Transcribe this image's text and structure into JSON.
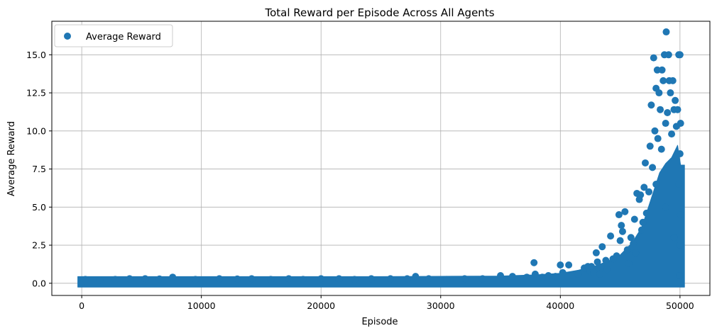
{
  "chart_data": {
    "type": "scatter",
    "title": "Total Reward per Episode Across All Agents",
    "xlabel": "Episode",
    "ylabel": "Average Reward",
    "xlim": [
      -2500,
      52500
    ],
    "ylim": [
      -0.8,
      17.2
    ],
    "x_ticks": [
      0,
      10000,
      20000,
      30000,
      40000,
      50000
    ],
    "x_tick_labels": [
      "0",
      "10000",
      "20000",
      "30000",
      "40000",
      "50000"
    ],
    "y_ticks": [
      0.0,
      2.5,
      5.0,
      7.5,
      10.0,
      12.5,
      15.0
    ],
    "y_tick_labels": [
      "0.0",
      "2.5",
      "5.0",
      "7.5",
      "10.0",
      "12.5",
      "15.0"
    ],
    "grid": true,
    "legend_position": "upper-left",
    "series": [
      {
        "name": "Average Reward",
        "color": "#1f77b4",
        "marker": "circle",
        "points": [
          [
            0,
            0.0
          ],
          [
            300,
            0.25
          ],
          [
            1500,
            0.2
          ],
          [
            2800,
            0.25
          ],
          [
            4000,
            0.3
          ],
          [
            5300,
            0.3
          ],
          [
            6500,
            0.28
          ],
          [
            7600,
            0.4
          ],
          [
            9500,
            0.25
          ],
          [
            11500,
            0.3
          ],
          [
            13000,
            0.28
          ],
          [
            14200,
            0.3
          ],
          [
            15800,
            0.25
          ],
          [
            17300,
            0.3
          ],
          [
            18500,
            0.25
          ],
          [
            20000,
            0.3
          ],
          [
            21500,
            0.3
          ],
          [
            22800,
            0.25
          ],
          [
            24200,
            0.3
          ],
          [
            25800,
            0.3
          ],
          [
            27200,
            0.3
          ],
          [
            27900,
            0.45
          ],
          [
            29000,
            0.3
          ],
          [
            30500,
            0.25
          ],
          [
            32000,
            0.3
          ],
          [
            33500,
            0.3
          ],
          [
            35000,
            0.5
          ],
          [
            36000,
            0.45
          ],
          [
            37200,
            0.4
          ],
          [
            37800,
            1.35
          ],
          [
            37900,
            0.6
          ],
          [
            38500,
            0.4
          ],
          [
            39000,
            0.5
          ],
          [
            39600,
            0.45
          ],
          [
            40000,
            1.2
          ],
          [
            40200,
            0.7
          ],
          [
            40700,
            1.2
          ],
          [
            41000,
            0.5
          ],
          [
            41500,
            0.6
          ],
          [
            42000,
            1.0
          ],
          [
            42300,
            1.1
          ],
          [
            42500,
            0.8
          ],
          [
            42600,
            1.1
          ],
          [
            42800,
            0.7
          ],
          [
            43000,
            2.0
          ],
          [
            43100,
            1.4
          ],
          [
            43300,
            0.6
          ],
          [
            43500,
            2.4
          ],
          [
            43800,
            1.5
          ],
          [
            43900,
            0.9
          ],
          [
            44200,
            3.1
          ],
          [
            44400,
            1.6
          ],
          [
            44700,
            1.8
          ],
          [
            44900,
            4.5
          ],
          [
            45000,
            2.8
          ],
          [
            45100,
            3.8
          ],
          [
            45200,
            3.4
          ],
          [
            45400,
            4.7
          ],
          [
            45600,
            2.2
          ],
          [
            45700,
            1.3
          ],
          [
            45900,
            3.0
          ],
          [
            46100,
            2.6
          ],
          [
            46200,
            4.2
          ],
          [
            46300,
            2.0
          ],
          [
            46400,
            5.9
          ],
          [
            46600,
            5.5
          ],
          [
            46700,
            5.8
          ],
          [
            46800,
            3.5
          ],
          [
            46900,
            4.0
          ],
          [
            47000,
            6.3
          ],
          [
            47100,
            7.9
          ],
          [
            47200,
            4.6
          ],
          [
            47400,
            6.0
          ],
          [
            47500,
            9.0
          ],
          [
            47600,
            11.7
          ],
          [
            47700,
            7.6
          ],
          [
            47800,
            14.8
          ],
          [
            47900,
            10.0
          ],
          [
            48000,
            12.8
          ],
          [
            48100,
            14.0
          ],
          [
            48150,
            9.5
          ],
          [
            48250,
            12.5
          ],
          [
            48350,
            11.4
          ],
          [
            48450,
            8.8
          ],
          [
            48500,
            14.0
          ],
          [
            48600,
            13.3
          ],
          [
            48700,
            15.0
          ],
          [
            48800,
            10.5
          ],
          [
            48850,
            16.5
          ],
          [
            48950,
            11.2
          ],
          [
            49050,
            15.0
          ],
          [
            49100,
            13.3
          ],
          [
            49200,
            12.5
          ],
          [
            49300,
            9.8
          ],
          [
            49400,
            13.3
          ],
          [
            49500,
            11.4
          ],
          [
            49600,
            12.0
          ],
          [
            49700,
            10.3
          ],
          [
            49800,
            11.4
          ],
          [
            49900,
            15.0
          ],
          [
            50000,
            15.0
          ],
          [
            50050,
            10.5
          ],
          [
            50000,
            8.5
          ],
          [
            49900,
            6.5
          ],
          [
            50050,
            4.5
          ],
          [
            50000,
            2.5
          ],
          [
            49950,
            0.5
          ],
          [
            48000,
            6.5
          ],
          [
            48800,
            5.0
          ],
          [
            49500,
            3.0
          ]
        ]
      }
    ],
    "dense_bands": [
      [
        0,
        0.0,
        0.18
      ],
      [
        5000,
        0.0,
        0.18
      ],
      [
        10000,
        0.0,
        0.18
      ],
      [
        15000,
        0.0,
        0.18
      ],
      [
        20000,
        0.0,
        0.18
      ],
      [
        25000,
        0.0,
        0.18
      ],
      [
        30000,
        0.0,
        0.2
      ],
      [
        35000,
        0.0,
        0.22
      ],
      [
        38000,
        0.0,
        0.3
      ],
      [
        40000,
        0.0,
        0.4
      ],
      [
        41500,
        0.0,
        0.6
      ],
      [
        43000,
        0.0,
        0.9
      ],
      [
        44000,
        0.0,
        1.2
      ],
      [
        45000,
        0.0,
        1.6
      ],
      [
        46000,
        0.0,
        2.4
      ],
      [
        46800,
        0.0,
        3.4
      ],
      [
        47300,
        0.0,
        4.6
      ],
      [
        47800,
        0.0,
        5.8
      ],
      [
        48300,
        0.0,
        7.0
      ],
      [
        48800,
        0.0,
        7.6
      ],
      [
        49300,
        0.0,
        8.0
      ],
      [
        49800,
        0.0,
        8.8
      ],
      [
        50050,
        0.0,
        7.5
      ]
    ]
  }
}
